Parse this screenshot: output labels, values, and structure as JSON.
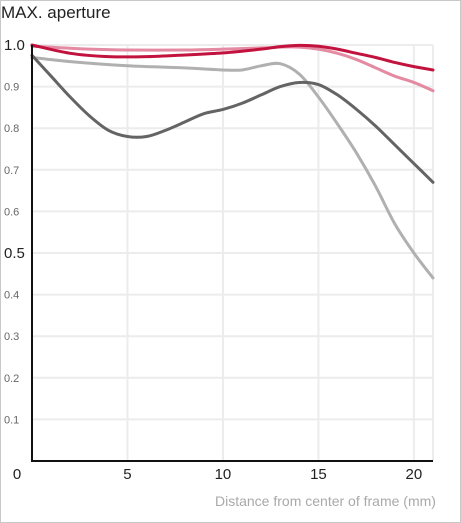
{
  "chart_data": {
    "type": "line",
    "title": "MAX. aperture",
    "xlabel": "Distance from center of frame (mm)",
    "ylabel": "",
    "xlim": [
      0,
      21
    ],
    "ylim": [
      0,
      1.0
    ],
    "grid": true,
    "x_ticks": [
      "0",
      "5",
      "10",
      "15",
      "20"
    ],
    "y_ticks": [
      {
        "value": 1.0,
        "label": "1.0",
        "major": true
      },
      {
        "value": 0.9,
        "label": "0.9",
        "major": false
      },
      {
        "value": 0.8,
        "label": "0.8",
        "major": false
      },
      {
        "value": 0.7,
        "label": "0.7",
        "major": false
      },
      {
        "value": 0.6,
        "label": "0.6",
        "major": false
      },
      {
        "value": 0.5,
        "label": "0.5",
        "major": true
      },
      {
        "value": 0.4,
        "label": "0.4",
        "major": false
      },
      {
        "value": 0.3,
        "label": "0.3",
        "major": false
      },
      {
        "value": 0.2,
        "label": "0.2",
        "major": false
      },
      {
        "value": 0.1,
        "label": "0.1",
        "major": false
      }
    ],
    "series": [
      {
        "color": "#b0b0b0",
        "width": 3,
        "x": [
          0,
          2,
          5,
          8,
          10,
          11,
          12,
          13,
          14,
          15,
          16,
          17,
          18,
          19,
          20,
          21
        ],
        "y": [
          0.97,
          0.96,
          0.95,
          0.945,
          0.94,
          0.94,
          0.95,
          0.955,
          0.93,
          0.875,
          0.81,
          0.74,
          0.66,
          0.57,
          0.5,
          0.44
        ]
      },
      {
        "color": "#e48aa2",
        "width": 3,
        "x": [
          0,
          3,
          5,
          8,
          10,
          12,
          13,
          14,
          15,
          16,
          17,
          18,
          19,
          20,
          21
        ],
        "y": [
          0.997,
          0.99,
          0.988,
          0.988,
          0.99,
          0.993,
          0.995,
          0.995,
          0.99,
          0.98,
          0.965,
          0.945,
          0.925,
          0.91,
          0.89
        ]
      },
      {
        "color": "#646464",
        "width": 3,
        "x": [
          0,
          1,
          2,
          3,
          4,
          5,
          6,
          7,
          8,
          9,
          10,
          11,
          12,
          13,
          14,
          15,
          16,
          17,
          18,
          19,
          20,
          21
        ],
        "y": [
          0.975,
          0.925,
          0.875,
          0.83,
          0.795,
          0.78,
          0.78,
          0.795,
          0.815,
          0.835,
          0.845,
          0.86,
          0.88,
          0.9,
          0.91,
          0.905,
          0.88,
          0.845,
          0.805,
          0.76,
          0.715,
          0.67
        ]
      },
      {
        "color": "#c2133f",
        "width": 3,
        "x": [
          0,
          2,
          4,
          6,
          8,
          10,
          12,
          13,
          14,
          15,
          16,
          17,
          18,
          19,
          20,
          21
        ],
        "y": [
          1.0,
          0.98,
          0.972,
          0.972,
          0.976,
          0.981,
          0.99,
          0.996,
          0.999,
          0.997,
          0.99,
          0.98,
          0.97,
          0.958,
          0.948,
          0.94
        ]
      }
    ]
  }
}
